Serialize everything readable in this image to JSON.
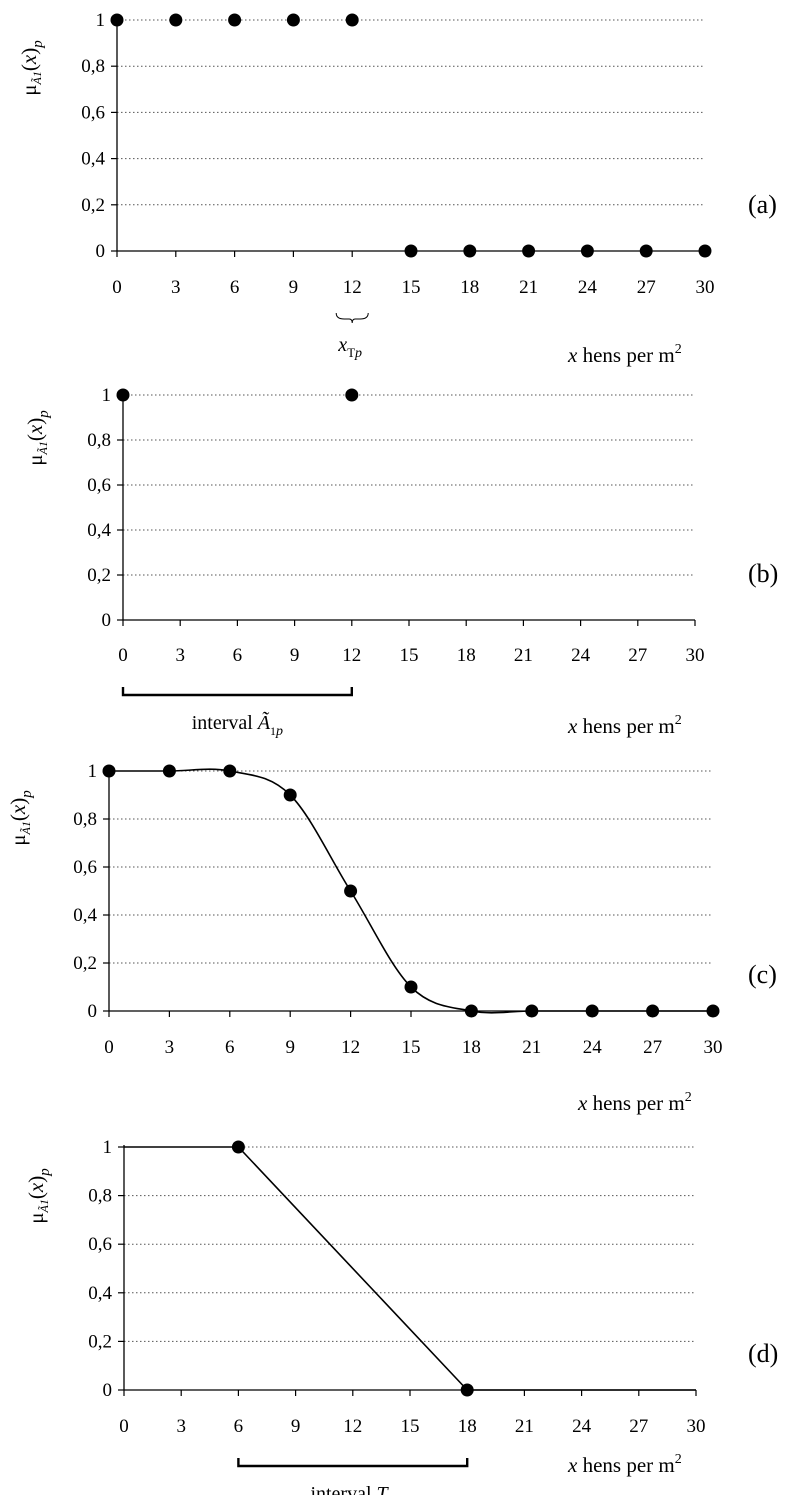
{
  "figure": {
    "xlabel_main": "x",
    "xlabel_rest": " hens per m",
    "xlabel_sup": "2",
    "ylabel_mu": "μ",
    "ylabel_sub": "Ã1",
    "ylabel_arg": "(x)",
    "ylabel_p": "p"
  },
  "chart_data": [
    {
      "panel": "(a)",
      "type": "scatter",
      "x_ticks": [
        0,
        3,
        6,
        9,
        12,
        15,
        18,
        21,
        24,
        27,
        30
      ],
      "y_ticks": [
        "0",
        "0,2",
        "0,4",
        "0,6",
        "0,8",
        "1"
      ],
      "xlim": [
        0,
        30
      ],
      "ylim": [
        0,
        1
      ],
      "grid": "horizontal dotted",
      "points": {
        "x": [
          0,
          3,
          6,
          9,
          12,
          15,
          18,
          21,
          24,
          27,
          30
        ],
        "y": [
          1,
          1,
          1,
          1,
          1,
          0,
          0,
          0,
          0,
          0,
          0
        ]
      },
      "annotation": {
        "text": "x",
        "sub": "Tp",
        "x": 12
      }
    },
    {
      "panel": "(b)",
      "type": "scatter",
      "x_ticks": [
        0,
        3,
        6,
        9,
        12,
        15,
        18,
        21,
        24,
        27,
        30
      ],
      "y_ticks": [
        "0",
        "0,2",
        "0,4",
        "0,6",
        "0,8",
        "1"
      ],
      "xlim": [
        0,
        30
      ],
      "ylim": [
        0,
        1
      ],
      "grid": "horizontal dotted",
      "points": {
        "x": [
          0,
          12
        ],
        "y": [
          1,
          1
        ]
      },
      "interval": {
        "label": "interval ",
        "symbol": "Ã",
        "sub": "1p",
        "from": 0,
        "to": 12
      }
    },
    {
      "panel": "(c)",
      "type": "line",
      "smooth": true,
      "x_ticks": [
        0,
        3,
        6,
        9,
        12,
        15,
        18,
        21,
        24,
        27,
        30
      ],
      "y_ticks": [
        "0",
        "0,2",
        "0,4",
        "0,6",
        "0,8",
        "1"
      ],
      "xlim": [
        0,
        30
      ],
      "ylim": [
        0,
        1
      ],
      "grid": "horizontal dotted",
      "points": {
        "x": [
          0,
          3,
          6,
          9,
          12,
          15,
          18,
          21,
          24,
          27,
          30
        ],
        "y": [
          1,
          1,
          1,
          0.9,
          0.5,
          0.1,
          0,
          0,
          0,
          0,
          0
        ]
      }
    },
    {
      "panel": "(d)",
      "type": "line",
      "x_ticks": [
        0,
        3,
        6,
        9,
        12,
        15,
        18,
        21,
        24,
        27,
        30
      ],
      "y_ticks": [
        "0",
        "0,2",
        "0,4",
        "0,6",
        "0,8",
        "1"
      ],
      "xlim": [
        0,
        30
      ],
      "ylim": [
        0,
        1
      ],
      "grid": "horizontal dotted",
      "line": {
        "x": [
          0,
          6,
          18,
          30
        ],
        "y": [
          1,
          1,
          0,
          0
        ]
      },
      "points": {
        "x": [
          6,
          18
        ],
        "y": [
          1,
          0
        ]
      },
      "interval": {
        "label": "interval ",
        "symbol": "T",
        "sub": "p",
        "from": 6,
        "to": 18
      }
    }
  ]
}
